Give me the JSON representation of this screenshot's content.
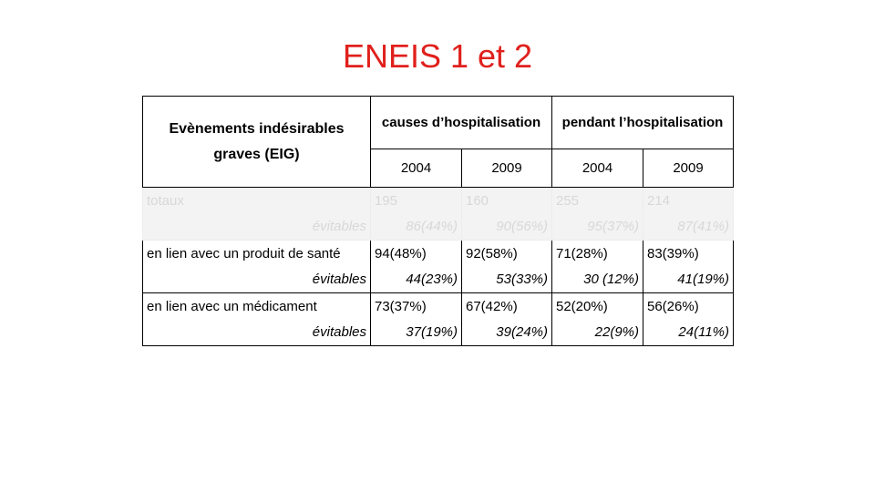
{
  "title": "ENEIS 1 et 2",
  "table": {
    "corner_header": "Evènements indésirables graves (EIG)",
    "group_headers": [
      "causes d’hospitalisation",
      "pendant l’hospitalisation"
    ],
    "years": [
      "2004",
      "2009",
      "2004",
      "2009"
    ],
    "rows": [
      {
        "label": "totaux",
        "values": [
          "195",
          "160",
          "255",
          "214"
        ],
        "sub_label": "évitables",
        "sub_values": [
          "86(44%)",
          "90(56%)",
          "95(37%)",
          "87(41%)"
        ],
        "faded": true
      },
      {
        "label": "en lien avec un produit de santé",
        "values": [
          "94(48%)",
          "92(58%)",
          "71(28%)",
          "83(39%)"
        ],
        "sub_label": "évitables",
        "sub_values": [
          "44(23%)",
          "53(33%)",
          "30 (12%)",
          "41(19%)"
        ],
        "faded": false
      },
      {
        "label": "en lien avec un médicament",
        "values": [
          "73(37%)",
          "67(42%)",
          "52(20%)",
          "56(26%)"
        ],
        "sub_label": "évitables",
        "sub_values": [
          "37(19%)",
          "39(24%)",
          "22(9%)",
          "24(11%)"
        ],
        "faded": false
      }
    ]
  }
}
